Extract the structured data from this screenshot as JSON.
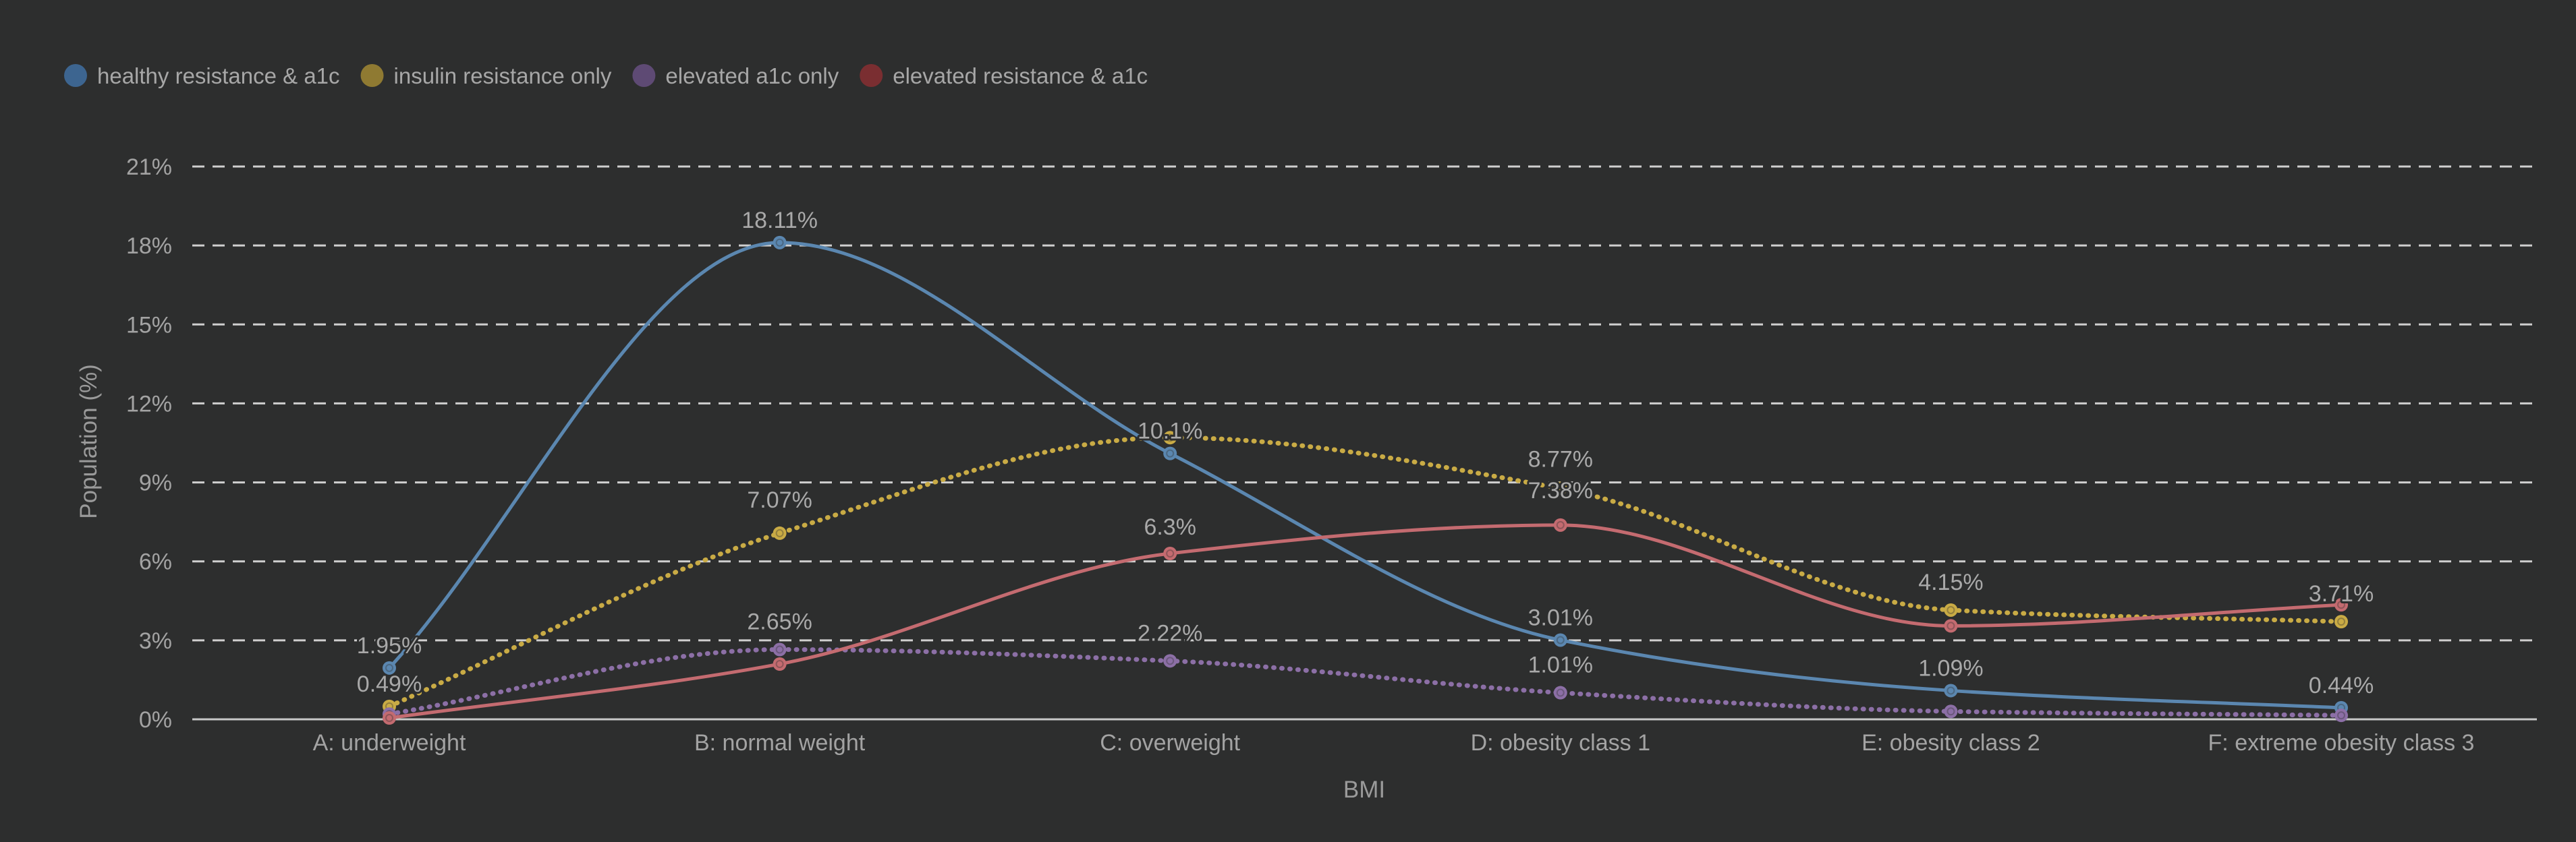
{
  "chart_data": {
    "type": "line",
    "xlabel": "BMI",
    "ylabel": "Population (%)",
    "categories": [
      "A: underweight",
      "B: normal weight",
      "C: overweight",
      "D: obesity class 1",
      "E: obesity class 2",
      "F: extreme obesity class 3"
    ],
    "y_ticks": [
      "0%",
      "3%",
      "6%",
      "9%",
      "12%",
      "15%",
      "18%",
      "21%"
    ],
    "ylim": [
      0,
      21
    ],
    "grid": true,
    "legend_position": "top-left",
    "series": [
      {
        "name": "healthy resistance & a1c",
        "color": "#5b87b0",
        "legend_color": "#3d6590",
        "dashed": false,
        "values": [
          1.95,
          18.11,
          10.1,
          3.01,
          1.09,
          0.44
        ],
        "labels": [
          "1.95%",
          "18.11%",
          "10.1%",
          "3.01%",
          "1.09%",
          "0.44%"
        ]
      },
      {
        "name": "insulin resistance only",
        "color": "#c9ab45",
        "legend_color": "#8f7a32",
        "dashed": true,
        "values": [
          0.49,
          7.07,
          10.7,
          8.77,
          4.15,
          3.71
        ],
        "labels": [
          "0.49%",
          "7.07%",
          "",
          "8.77%",
          "4.15%",
          "3.71%"
        ]
      },
      {
        "name": "elevated a1c only",
        "color": "#8c6fa6",
        "legend_color": "#5e4a74",
        "dashed": true,
        "values": [
          0.2,
          2.65,
          2.22,
          1.01,
          0.3,
          0.15
        ],
        "labels": [
          "",
          "2.65%",
          "2.22%",
          "1.01%",
          "",
          ""
        ]
      },
      {
        "name": "elevated resistance & a1c",
        "color": "#c46b70",
        "legend_color": "#7a2e31",
        "dashed": false,
        "values": [
          0.05,
          2.1,
          6.3,
          7.38,
          3.55,
          4.35
        ],
        "labels": [
          "",
          "",
          "6.3%",
          "7.38%",
          "",
          ""
        ]
      }
    ]
  }
}
